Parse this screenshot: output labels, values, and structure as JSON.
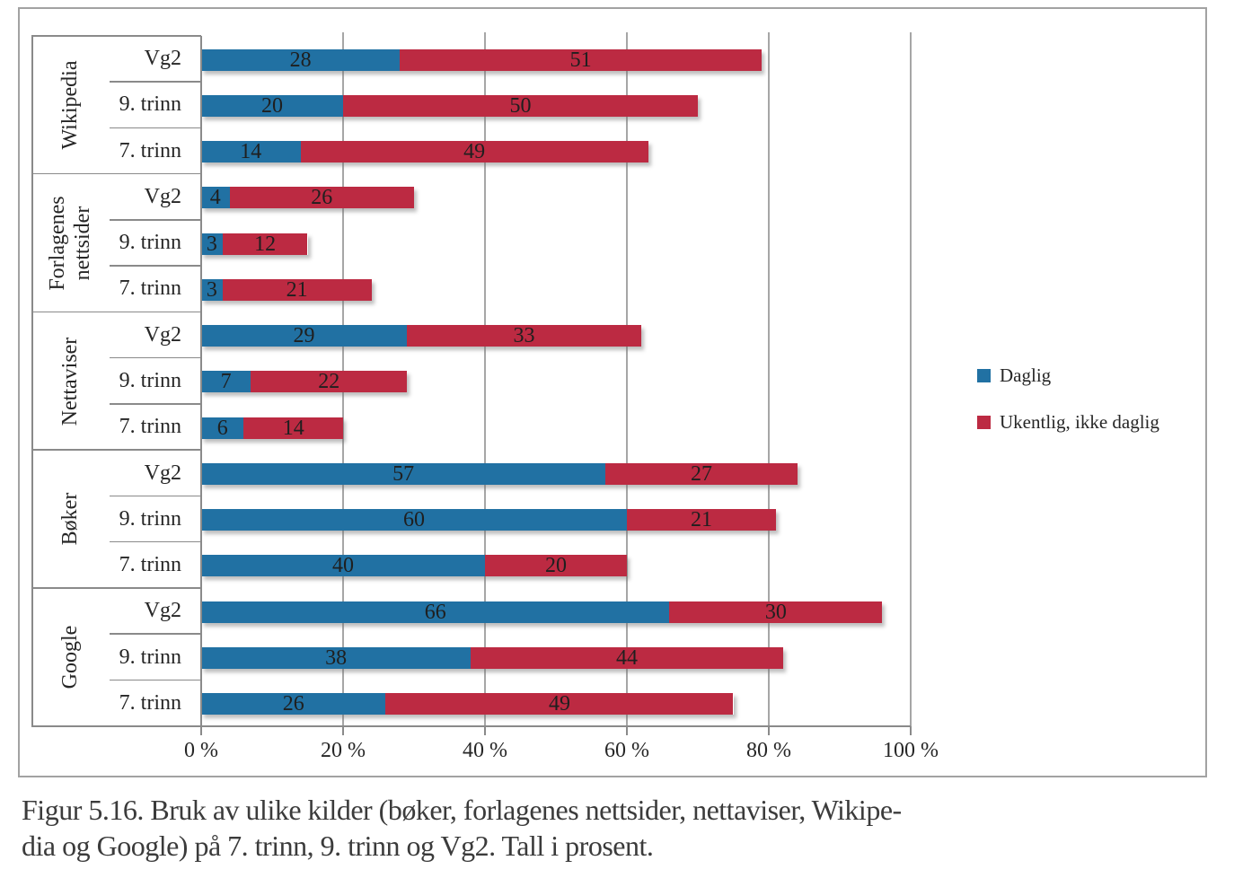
{
  "chart_data": {
    "type": "bar",
    "orientation": "horizontal",
    "stacked": true,
    "title": "",
    "xlabel": "",
    "ylabel": "",
    "xlim": [
      0,
      100
    ],
    "x_tick_values": [
      0,
      20,
      40,
      60,
      80,
      100
    ],
    "x_tick_labels": [
      "0 %",
      "20 %",
      "40 %",
      "60 %",
      "80 %",
      "100 %"
    ],
    "grid": "vertical",
    "legend_position": "right-middle",
    "series": [
      {
        "name": "Daglig",
        "color": "#2171A3"
      },
      {
        "name": "Ukentlig, ikke daglig",
        "color": "#BC2A42"
      }
    ],
    "groups": [
      {
        "label": "Wikipedia",
        "rows": [
          {
            "label": "Vg2",
            "values": [
              28,
              51
            ]
          },
          {
            "label": "9. trinn",
            "values": [
              20,
              50
            ]
          },
          {
            "label": "7. trinn",
            "values": [
              14,
              49
            ]
          }
        ]
      },
      {
        "label": "Forlagenes nettsider",
        "rows": [
          {
            "label": "Vg2",
            "values": [
              4,
              26
            ]
          },
          {
            "label": "9. trinn",
            "values": [
              3,
              12
            ]
          },
          {
            "label": "7. trinn",
            "values": [
              3,
              21
            ]
          }
        ]
      },
      {
        "label": "Nettaviser",
        "rows": [
          {
            "label": "Vg2",
            "values": [
              29,
              33
            ]
          },
          {
            "label": "9. trinn",
            "values": [
              7,
              22
            ]
          },
          {
            "label": "7. trinn",
            "values": [
              6,
              14
            ]
          }
        ]
      },
      {
        "label": "Bøker",
        "rows": [
          {
            "label": "Vg2",
            "values": [
              57,
              27
            ]
          },
          {
            "label": "9. trinn",
            "values": [
              60,
              21
            ]
          },
          {
            "label": "7. trinn",
            "values": [
              40,
              20
            ]
          }
        ]
      },
      {
        "label": "Google",
        "rows": [
          {
            "label": "Vg2",
            "values": [
              66,
              30
            ]
          },
          {
            "label": "9. trinn",
            "values": [
              38,
              44
            ]
          },
          {
            "label": "7. trinn",
            "values": [
              26,
              49
            ]
          }
        ]
      }
    ]
  },
  "caption": {
    "lines": [
      "Figur 5.16. Bruk av ulike kilder (bøker, forlagenes nettsider, nettaviser, Wikipe-",
      "dia og Google) på 7. trinn, 9. trinn og Vg2. Tall i prosent."
    ]
  },
  "colors": {
    "grid": "#a6a6a6",
    "axis": "#8a8a8a",
    "frame": "#a2a2a2",
    "chart_text": "#262626",
    "caption_text": "#3b3b3b"
  }
}
